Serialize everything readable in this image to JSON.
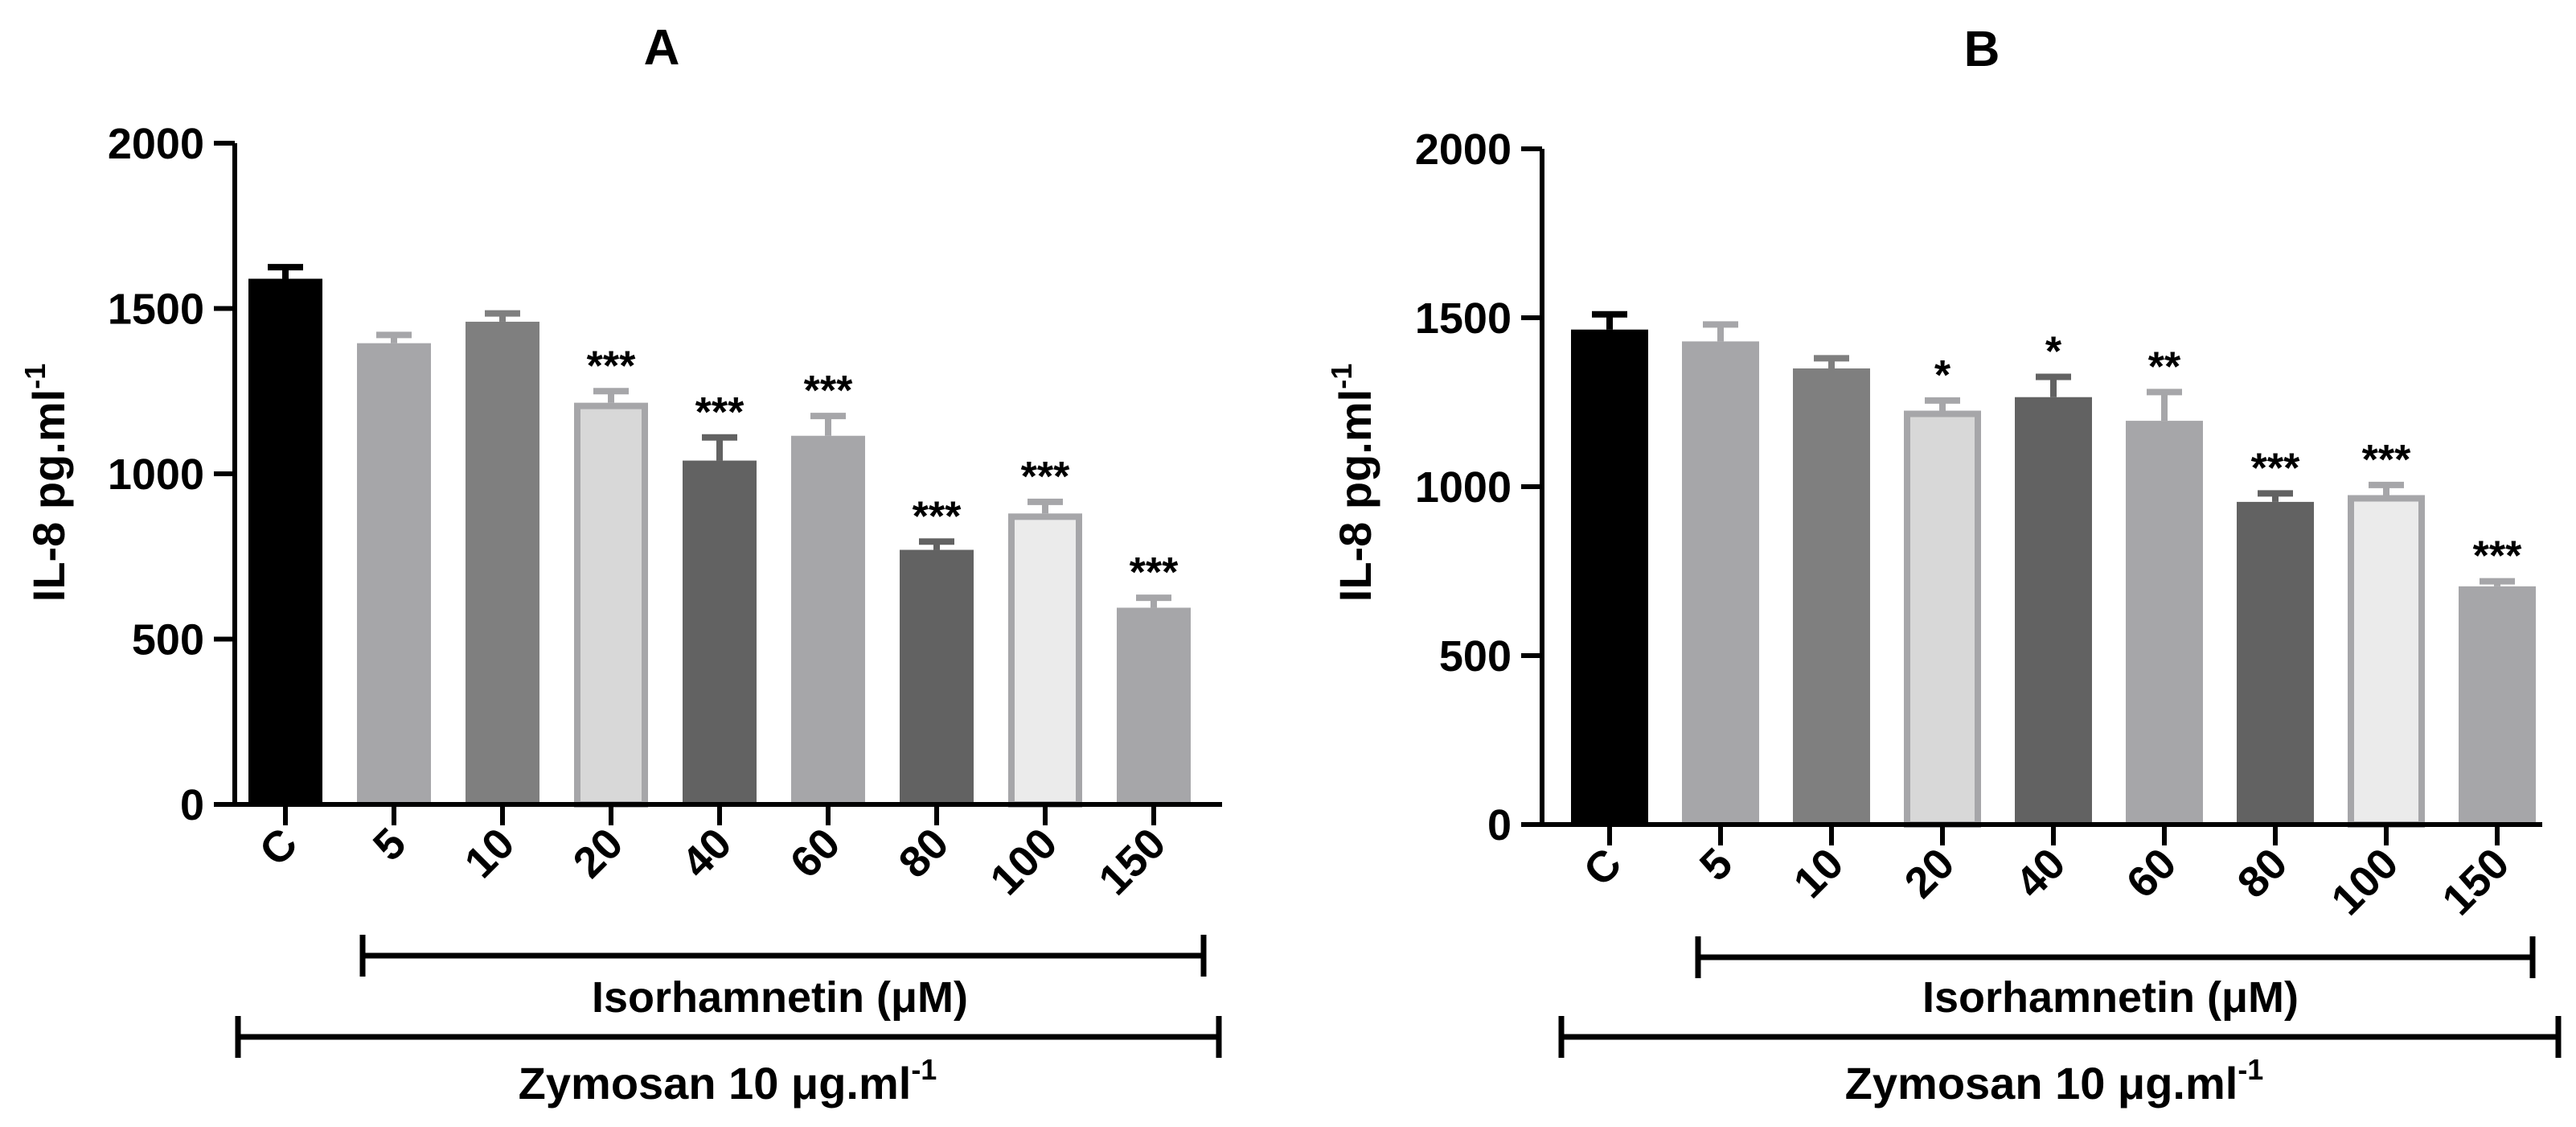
{
  "chart_data": [
    {
      "type": "bar",
      "panel_label": "A",
      "ylabel": "IL-8 pg.ml",
      "ylabel_sup": "-1",
      "ylim": [
        0,
        2000
      ],
      "yticks": [
        "0",
        "500",
        "1000",
        "1500",
        "2000"
      ],
      "categories": [
        "C",
        "5",
        "10",
        "20",
        "40",
        "60",
        "80",
        "100",
        "150"
      ],
      "values": [
        1590,
        1395,
        1460,
        1215,
        1040,
        1115,
        770,
        880,
        595
      ],
      "errors": [
        35,
        25,
        25,
        35,
        70,
        60,
        25,
        35,
        30
      ],
      "significance": [
        "",
        "",
        "",
        "***",
        "***",
        "***",
        "***",
        "***",
        "***"
      ],
      "bar_colors": [
        "#000000",
        "#a6a6a9",
        "#7f7f7f",
        "#d8d8d8",
        "#626262",
        "#a6a6a9",
        "#626262",
        "#ebebeb",
        "#a6a6a9"
      ],
      "bar_outlines": [
        "#000000",
        "#a6a6a9",
        "#7f7f7f",
        "#a6a6a9",
        "#626262",
        "#a6a6a9",
        "#626262",
        "#a6a6a9",
        "#a6a6a9"
      ],
      "bracket_inner_label": "Isorhamnetin (μM)",
      "bracket_outer_label": "Zymosan 10 μg.ml",
      "bracket_outer_sup": "-1"
    },
    {
      "type": "bar",
      "panel_label": "B",
      "ylabel": "IL-8 pg.ml",
      "ylabel_sup": "-1",
      "ylim": [
        0,
        2000
      ],
      "yticks": [
        "0",
        "500",
        "1000",
        "1500",
        "2000"
      ],
      "categories": [
        "C",
        "5",
        "10",
        "20",
        "40",
        "60",
        "80",
        "100",
        "150"
      ],
      "values": [
        1465,
        1430,
        1350,
        1225,
        1265,
        1195,
        955,
        975,
        705
      ],
      "errors": [
        45,
        50,
        30,
        30,
        60,
        85,
        25,
        30,
        15
      ],
      "significance": [
        "",
        "",
        "",
        "*",
        "*",
        "**",
        "***",
        "***",
        "***"
      ],
      "bar_colors": [
        "#000000",
        "#a6a6a9",
        "#7f7f7f",
        "#d8d8d8",
        "#626262",
        "#a6a6a9",
        "#626262",
        "#ebebeb",
        "#a6a6a9"
      ],
      "bar_outlines": [
        "#000000",
        "#a6a6a9",
        "#7f7f7f",
        "#a6a6a9",
        "#626262",
        "#a6a6a9",
        "#626262",
        "#a6a6a9",
        "#a6a6a9"
      ],
      "bracket_inner_label": "Isorhamnetin (μM)",
      "bracket_outer_label": "Zymosan 10 μg.ml",
      "bracket_outer_sup": "-1"
    }
  ]
}
